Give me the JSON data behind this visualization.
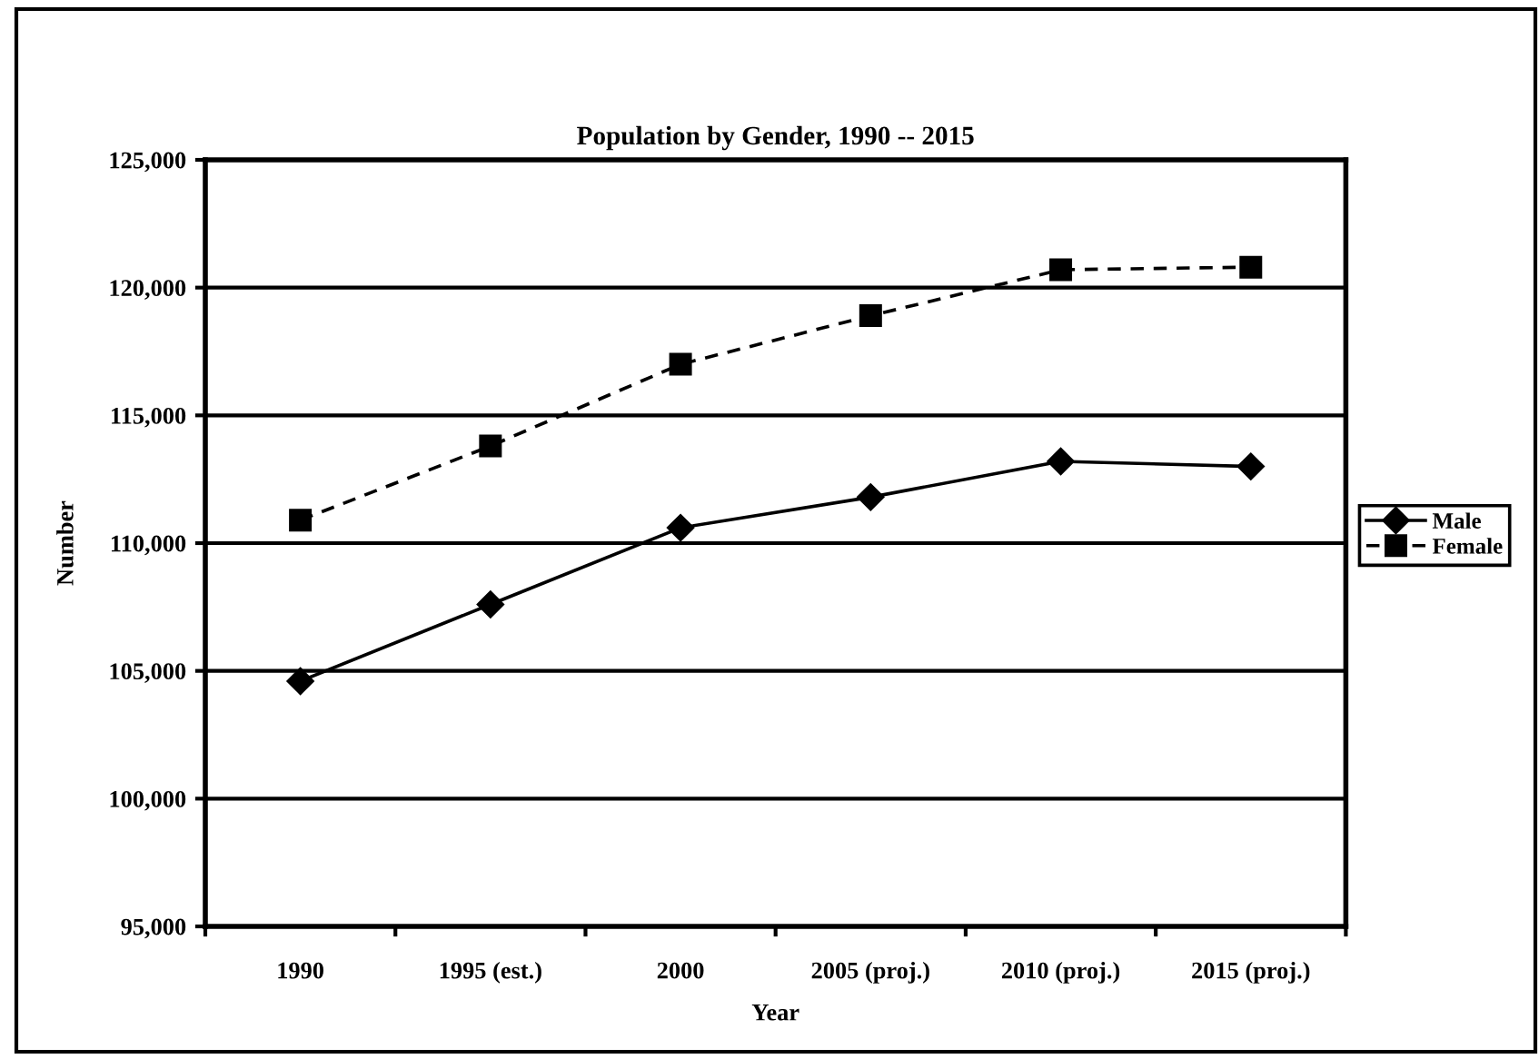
{
  "chart_data": {
    "type": "line",
    "title": "Population by Gender, 1990 -- 2015",
    "xlabel": "Year",
    "ylabel": "Number",
    "categories": [
      "1990",
      "1995 (est.)",
      "2000",
      "2005 (proj.)",
      "2010 (proj.)",
      "2015 (proj.)"
    ],
    "series": [
      {
        "name": "Male",
        "color": "#000000",
        "marker": "diamond",
        "line_style": "solid",
        "values": [
          104600,
          107600,
          110600,
          111800,
          113200,
          113000
        ]
      },
      {
        "name": "Female",
        "color": "#000000",
        "marker": "square",
        "line_style": "dashed",
        "values": [
          110900,
          113800,
          117000,
          118900,
          120700,
          120800
        ]
      }
    ],
    "ylim": [
      95000,
      125000
    ],
    "yticks": [
      {
        "value": 95000,
        "label": "95,000"
      },
      {
        "value": 100000,
        "label": "100,000"
      },
      {
        "value": 105000,
        "label": "105,000"
      },
      {
        "value": 110000,
        "label": "110,000"
      },
      {
        "value": 115000,
        "label": "115,000"
      },
      {
        "value": 120000,
        "label": "120,000"
      },
      {
        "value": 125000,
        "label": "125,000"
      }
    ],
    "grid": "y",
    "legend": "right"
  }
}
